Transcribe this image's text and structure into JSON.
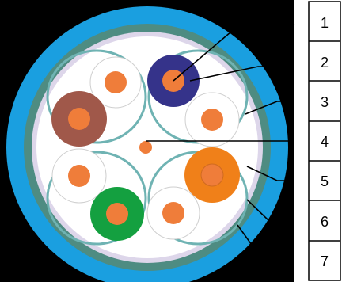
{
  "legend": {
    "numbers": [
      "1",
      "2",
      "3",
      "4",
      "5",
      "6",
      "7"
    ]
  },
  "colors": {
    "background": "#000000",
    "outer_jacket": "#1a9fe0",
    "shield": "#4e8c82",
    "inner_layer": "#ddd6ea",
    "core_fill": "#ffffff",
    "separator": "#6fb3b3",
    "conductor": "#ef7d3a",
    "pair_blue": "#35338a",
    "pair_brown": "#a0584a",
    "pair_orange": "#f08019",
    "pair_green": "#14a040",
    "leader": "#000000"
  }
}
